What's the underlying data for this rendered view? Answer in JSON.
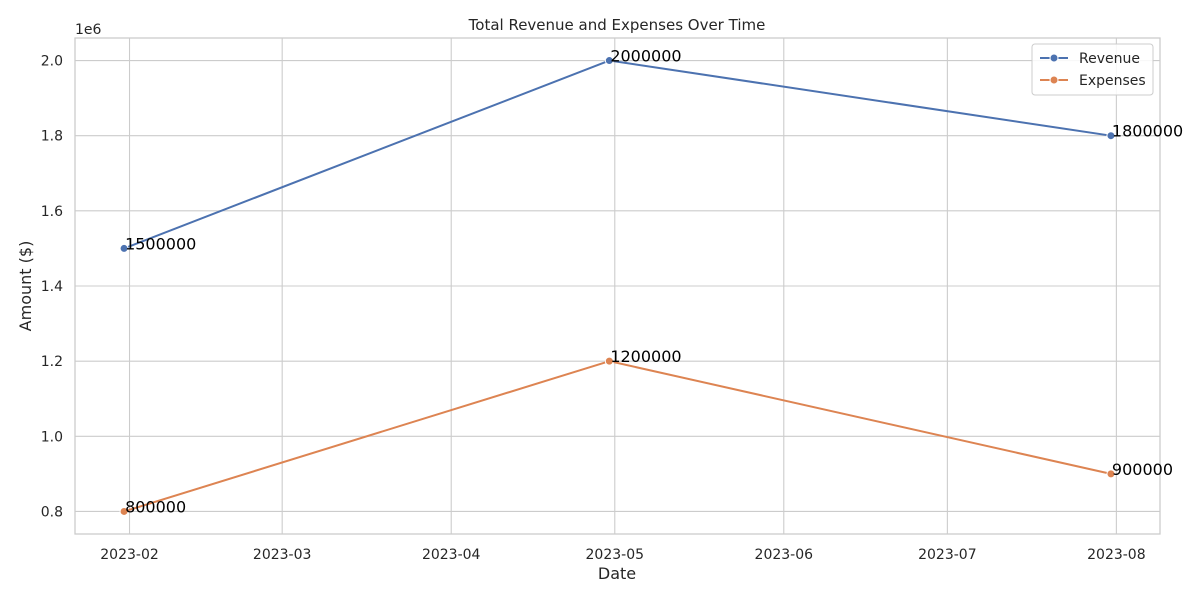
{
  "chart_data": {
    "type": "line",
    "title": "Total Revenue and Expenses Over Time",
    "xlabel": "Date",
    "ylabel": "Amount ($)",
    "y_offset_label": "1e6",
    "x": [
      "2023-01-31",
      "2023-04-30",
      "2023-07-31"
    ],
    "series": [
      {
        "name": "Revenue",
        "values": [
          1500000,
          2000000,
          1800000
        ],
        "color": "#4c72b0"
      },
      {
        "name": "Expenses",
        "values": [
          800000,
          1200000,
          900000
        ],
        "color": "#dd8452"
      }
    ],
    "data_labels": {
      "Revenue": [
        "1500000",
        "2000000",
        "1800000"
      ],
      "Expenses": [
        "800000",
        "1200000",
        "900000"
      ]
    },
    "xlim": [
      "2023-01-22",
      "2023-08-09"
    ],
    "ylim": [
      740000,
      2060000
    ],
    "x_ticks": [
      "2023-02-01",
      "2023-03-01",
      "2023-04-01",
      "2023-05-01",
      "2023-06-01",
      "2023-07-01",
      "2023-08-01"
    ],
    "x_tick_labels": [
      "2023-02",
      "2023-03",
      "2023-04",
      "2023-05",
      "2023-06",
      "2023-07",
      "2023-08"
    ],
    "y_ticks": [
      800000,
      1000000,
      1200000,
      1400000,
      1600000,
      1800000,
      2000000
    ],
    "y_tick_labels": [
      "0.8",
      "1.0",
      "1.2",
      "1.4",
      "1.6",
      "1.8",
      "2.0"
    ],
    "grid": true,
    "legend_position": "top-right",
    "marker": "circle"
  }
}
